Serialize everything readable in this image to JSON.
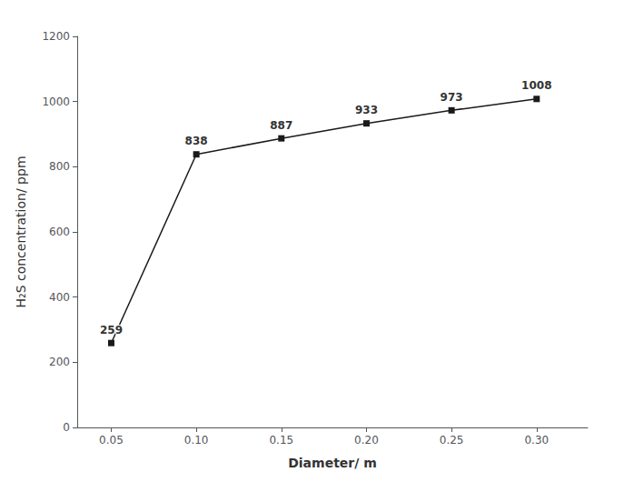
{
  "chart_data": {
    "type": "line",
    "x": [
      0.05,
      0.1,
      0.15,
      0.2,
      0.25,
      0.3
    ],
    "values": [
      259,
      838,
      887,
      933,
      973,
      1008
    ],
    "color": "#1a1a1a",
    "marker": "square",
    "xlabel": "Diameter/ m",
    "ylabel": "H₂S concentration/ ppm",
    "xlim": [
      0.03,
      0.33
    ],
    "ylim": [
      0,
      1200
    ],
    "xticks": [
      0.05,
      {
        "value": 0.1,
        "label": "0.10"
      },
      0.15,
      {
        "value": 0.2,
        "label": "0.20"
      },
      0.25,
      {
        "value": 0.3,
        "label": "0.30"
      }
    ],
    "yticks": [
      0,
      200,
      400,
      600,
      800,
      1000,
      1200
    ],
    "grid": false,
    "data_labels": true
  }
}
